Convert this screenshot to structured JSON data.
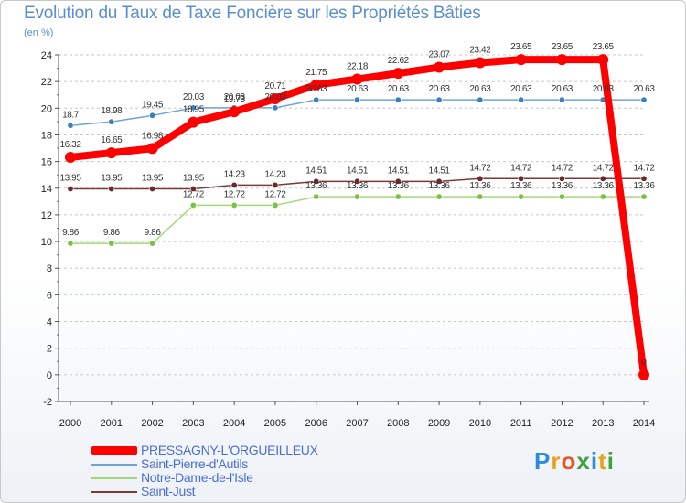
{
  "header": {
    "title": "Evolution du Taux de Taxe Foncière sur les Propriétés Bâties",
    "subtitle": "(en %)"
  },
  "logo": {
    "letters": [
      "P",
      "r",
      "o",
      "x",
      "i",
      "t",
      "i"
    ],
    "colors": [
      "#2e8bd9",
      "#e8a31b",
      "#e05a2a",
      "#3fa33a",
      "#2e8bd9",
      "#e8a31b",
      "#3fa33a"
    ]
  },
  "chart_data": {
    "type": "line",
    "title": "Evolution du Taux de Taxe Foncière sur les Propriétés Bâties",
    "ylabel": "(en %)",
    "xlabel": "",
    "ylim": [
      -2,
      24
    ],
    "y_ticks": [
      -2,
      0,
      2,
      4,
      6,
      8,
      10,
      12,
      14,
      16,
      18,
      20,
      22,
      24
    ],
    "categories": [
      "2000",
      "2001",
      "2002",
      "2003",
      "2004",
      "2005",
      "2006",
      "2007",
      "2008",
      "2009",
      "2010",
      "2011",
      "2012",
      "2013",
      "2014"
    ],
    "grid": "horizontal dashed",
    "legend_position": "bottom-left",
    "series": [
      {
        "name": "Saint-Pierre-d'Autils",
        "color": "#6fa3d6",
        "marker": "#3a7fc0",
        "values": [
          18.7,
          18.98,
          19.45,
          20.03,
          20.03,
          20.03,
          20.63,
          20.63,
          20.63,
          20.63,
          20.63,
          20.63,
          20.63,
          20.63,
          20.63
        ],
        "labels": [
          "18.7",
          "18.98",
          "19.45",
          "20.03",
          "20.03",
          "20.03",
          "20.63",
          "20.63",
          "20.63",
          "20.63",
          "20.63",
          "20.63",
          "20.63",
          "20.63",
          "20.63"
        ]
      },
      {
        "name": "Notre-Dame-de-l'Isle",
        "color": "#a6d67a",
        "marker": "#7cc242",
        "values": [
          9.86,
          9.86,
          9.86,
          12.72,
          12.72,
          12.72,
          13.36,
          13.36,
          13.36,
          13.36,
          13.36,
          13.36,
          13.36,
          13.36,
          13.36
        ],
        "labels": [
          "9.86",
          "9.86",
          "9.86",
          "12.72",
          "12.72",
          "12.72",
          "13.36",
          "13.36",
          "13.36",
          "13.36",
          "13.36",
          "13.36",
          "13.36",
          "13.36",
          "13.36"
        ]
      },
      {
        "name": "Saint-Just",
        "color": "#7a3a3a",
        "marker": "#6a2a2a",
        "values": [
          13.95,
          13.95,
          13.95,
          13.95,
          14.23,
          14.23,
          14.51,
          14.51,
          14.51,
          14.51,
          14.72,
          14.72,
          14.72,
          14.72,
          14.72
        ],
        "labels": [
          "13.95",
          "13.95",
          "13.95",
          "13.95",
          "14.23",
          "14.23",
          "14.51",
          "14.51",
          "14.51",
          "14.51",
          "14.72",
          "14.72",
          "14.72",
          "14.72",
          "14.72"
        ]
      },
      {
        "name": "PRESSAGNY-L'ORGUEILLEUX",
        "color": "#ff0000",
        "marker": "#ff0000",
        "values": [
          16.32,
          16.65,
          16.98,
          18.95,
          19.73,
          20.71,
          21.75,
          22.18,
          22.62,
          23.07,
          23.42,
          23.65,
          23.65,
          23.65,
          0
        ],
        "labels": [
          "16.32",
          "16.65",
          "16.98",
          "18.95",
          "19.73",
          "20.71",
          "21.75",
          "22.18",
          "22.62",
          "23.07",
          "23.42",
          "23.65",
          "23.65",
          "23.65",
          "0"
        ]
      }
    ]
  },
  "legend": {
    "items": [
      {
        "label": "PRESSAGNY-L'ORGUEILLEUX",
        "color": "#ff0000"
      },
      {
        "label": "Saint-Pierre-d'Autils",
        "color": "#6fa3d6"
      },
      {
        "label": "Notre-Dame-de-l'Isle",
        "color": "#a6d67a"
      },
      {
        "label": "Saint-Just",
        "color": "#7a3a3a"
      }
    ]
  }
}
